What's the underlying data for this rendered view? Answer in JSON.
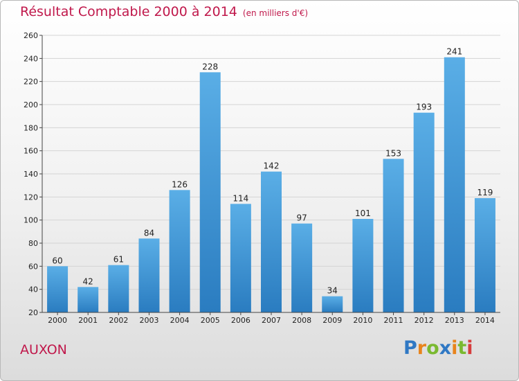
{
  "title": "Résultat Comptable 2000 à 2014",
  "subtitle": "(en milliers d'€)",
  "town": "AUXON",
  "logo_text": "Proxiti",
  "colors": {
    "title": "#c0184b",
    "bar_top": "#5aaee6",
    "bar_bottom": "#2a7cc0"
  },
  "chart_data": {
    "type": "bar",
    "title": "Résultat Comptable 2000 à 2014",
    "subtitle": "(en milliers d'€)",
    "categories": [
      "2000",
      "2001",
      "2002",
      "2003",
      "2004",
      "2005",
      "2006",
      "2007",
      "2008",
      "2009",
      "2010",
      "2011",
      "2012",
      "2013",
      "2014"
    ],
    "values": [
      60,
      42,
      61,
      84,
      126,
      228,
      114,
      142,
      97,
      34,
      101,
      153,
      193,
      241,
      119
    ],
    "ylim": [
      20,
      260
    ],
    "yticks": [
      20,
      40,
      60,
      80,
      100,
      120,
      140,
      160,
      180,
      200,
      220,
      240,
      260
    ],
    "grid": true,
    "data_labels": true
  }
}
